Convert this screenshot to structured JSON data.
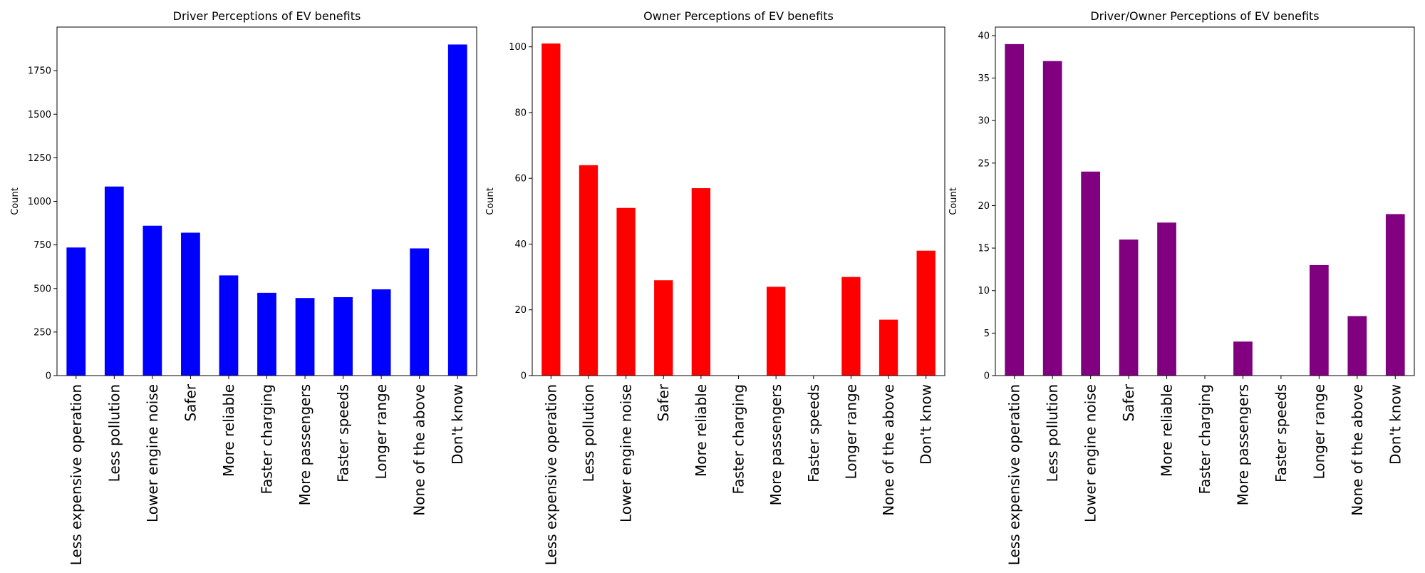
{
  "chart_data": [
    {
      "type": "bar",
      "title": "Driver Perceptions of EV benefits",
      "xlabel": "",
      "ylabel": "Count",
      "ylim": [
        0,
        2000
      ],
      "yticks": [
        0,
        250,
        500,
        750,
        1000,
        1250,
        1500,
        1750
      ],
      "color": "#0000ff",
      "grid": false,
      "categories": [
        "Less expensive operation",
        "Less pollution",
        "Lower engine noise",
        "Safer",
        "More reliable",
        "Faster charging",
        "More passengers",
        "Faster speeds",
        "Longer range",
        "None of the above",
        "Don't know"
      ],
      "values": [
        735,
        1085,
        860,
        820,
        575,
        475,
        445,
        450,
        495,
        730,
        1900
      ]
    },
    {
      "type": "bar",
      "title": "Owner Perceptions of EV benefits",
      "xlabel": "",
      "ylabel": "Count",
      "ylim": [
        0,
        106
      ],
      "yticks": [
        0,
        20,
        40,
        60,
        80,
        100
      ],
      "color": "#ff0000",
      "grid": false,
      "categories": [
        "Less expensive operation",
        "Less pollution",
        "Lower engine noise",
        "Safer",
        "More reliable",
        "Faster charging",
        "More passengers",
        "Faster speeds",
        "Longer range",
        "None of the above",
        "Don't know"
      ],
      "values": [
        101,
        64,
        51,
        29,
        57,
        0,
        27,
        0,
        30,
        17,
        38
      ]
    },
    {
      "type": "bar",
      "title": "Driver/Owner Perceptions of EV benefits",
      "xlabel": "",
      "ylabel": "Count",
      "ylim": [
        0,
        41
      ],
      "yticks": [
        0,
        5,
        10,
        15,
        20,
        25,
        30,
        35,
        40
      ],
      "color": "#800080",
      "grid": false,
      "categories": [
        "Less expensive operation",
        "Less pollution",
        "Lower engine noise",
        "Safer",
        "More reliable",
        "Faster charging",
        "More passengers",
        "Faster speeds",
        "Longer range",
        "None of the above",
        "Don't know"
      ],
      "values": [
        39,
        37,
        24,
        16,
        18,
        0,
        4,
        0,
        13,
        7,
        19
      ]
    }
  ]
}
